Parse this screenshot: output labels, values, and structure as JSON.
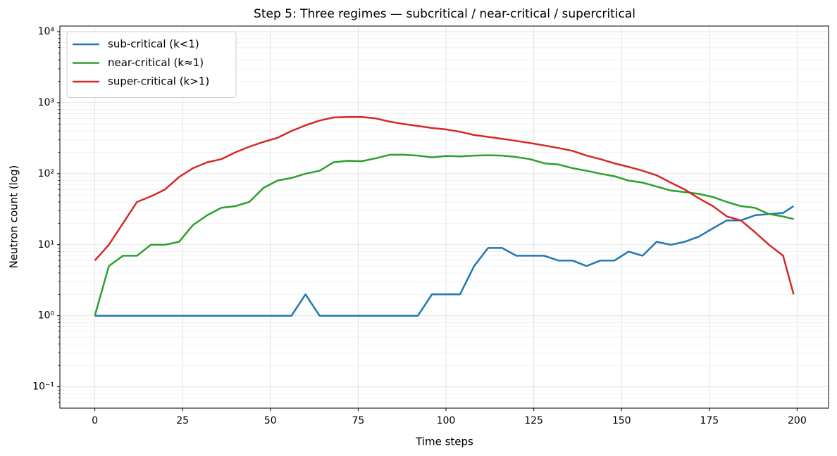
{
  "chart_data": {
    "type": "line",
    "title": "Step 5: Three regimes — subcritical / near-critical / supercritical",
    "xlabel": "Time steps",
    "ylabel": "Neutron count (log)",
    "log_y": true,
    "grid": true,
    "legend": "upper left",
    "xlim": [
      -9.95,
      208.95
    ],
    "ylim": [
      0.05,
      12000
    ],
    "xticks": [
      0,
      25,
      50,
      75,
      100,
      125,
      150,
      175,
      200
    ],
    "yticks": [
      {
        "value": 0.1,
        "label": "10⁻¹"
      },
      {
        "value": 1,
        "label": "10⁰"
      },
      {
        "value": 10,
        "label": "10¹"
      },
      {
        "value": 100,
        "label": "10²"
      },
      {
        "value": 1000,
        "label": "10³"
      },
      {
        "value": 10000,
        "label": "10⁴"
      }
    ],
    "x": [
      0,
      4,
      8,
      12,
      16,
      20,
      24,
      28,
      32,
      36,
      40,
      44,
      48,
      52,
      56,
      60,
      64,
      68,
      72,
      76,
      80,
      84,
      88,
      92,
      96,
      100,
      104,
      108,
      112,
      116,
      120,
      124,
      128,
      132,
      136,
      140,
      144,
      148,
      152,
      156,
      160,
      164,
      168,
      172,
      176,
      180,
      184,
      188,
      192,
      196,
      199
    ],
    "series": [
      {
        "name": "sub-critical (k<1)",
        "color": "#1f77b4",
        "values": [
          1,
          1,
          1,
          1,
          1,
          1,
          1,
          1,
          1,
          1,
          1,
          1,
          1,
          1,
          1,
          2,
          1,
          1,
          1,
          1,
          1,
          1,
          1,
          1,
          2,
          2,
          2,
          5,
          9,
          9,
          7,
          7,
          7,
          6,
          6,
          5,
          6,
          6,
          8,
          7,
          11,
          10,
          11,
          13,
          17,
          22,
          22,
          26,
          27,
          28,
          35
        ]
      },
      {
        "name": "near-critical (k≈1)",
        "color": "#2ca02c",
        "values": [
          1,
          5,
          7,
          7,
          10,
          10,
          11,
          19,
          26,
          33,
          35,
          40,
          63,
          80,
          87,
          100,
          110,
          145,
          152,
          150,
          165,
          185,
          185,
          180,
          170,
          178,
          175,
          180,
          182,
          180,
          172,
          160,
          140,
          135,
          120,
          110,
          100,
          92,
          80,
          75,
          66,
          58,
          55,
          52,
          47,
          40,
          35,
          33,
          27,
          25,
          23
        ]
      },
      {
        "name": "super-critical (k>1)",
        "color": "#d62728",
        "values": [
          6,
          10,
          20,
          40,
          48,
          60,
          90,
          120,
          145,
          160,
          200,
          240,
          280,
          320,
          400,
          480,
          560,
          620,
          630,
          630,
          600,
          540,
          500,
          470,
          440,
          420,
          390,
          350,
          330,
          310,
          290,
          270,
          250,
          230,
          210,
          180,
          160,
          140,
          125,
          110,
          95,
          75,
          60,
          45,
          35,
          25,
          22,
          15,
          10,
          7,
          2
        ]
      }
    ]
  }
}
